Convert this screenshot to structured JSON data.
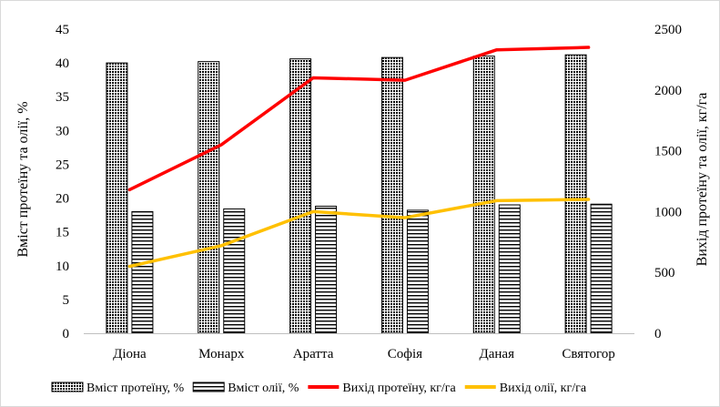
{
  "chart_data": {
    "type": "bar",
    "categories": [
      "Діона",
      "Монарх",
      "Аратта",
      "Софія",
      "Даная",
      "Святогор"
    ],
    "y_left": {
      "label": "Вміст протеїну та олії, %",
      "ylim": [
        0,
        45
      ],
      "ticks": [
        0,
        5,
        10,
        15,
        20,
        25,
        30,
        35,
        40,
        45
      ]
    },
    "y_right": {
      "label": "Вихід протеїну та олії, кг/га",
      "ylim": [
        0,
        2500
      ],
      "ticks": [
        0,
        500,
        1000,
        1500,
        2000,
        2500
      ]
    },
    "series": [
      {
        "name": "Вміст протеїну, %",
        "kind": "bar",
        "axis": "left",
        "pattern": "dots",
        "values": [
          40.0,
          40.2,
          40.6,
          40.8,
          41.0,
          41.2
        ]
      },
      {
        "name": "Вміст олії, %",
        "kind": "bar",
        "axis": "left",
        "pattern": "hlines",
        "values": [
          18.0,
          18.4,
          18.8,
          18.2,
          19.0,
          19.1
        ]
      },
      {
        "name": "Вихід  протеїну, кг/га",
        "kind": "line",
        "axis": "right",
        "color": "#ff0000",
        "values": [
          1180,
          1550,
          2100,
          2080,
          2330,
          2350
        ]
      },
      {
        "name": "Вихід  олії, кг/га",
        "kind": "line",
        "axis": "right",
        "color": "#ffc000",
        "values": [
          550,
          720,
          1000,
          950,
          1090,
          1100
        ]
      }
    ],
    "grid": false,
    "legend_position": "bottom"
  }
}
